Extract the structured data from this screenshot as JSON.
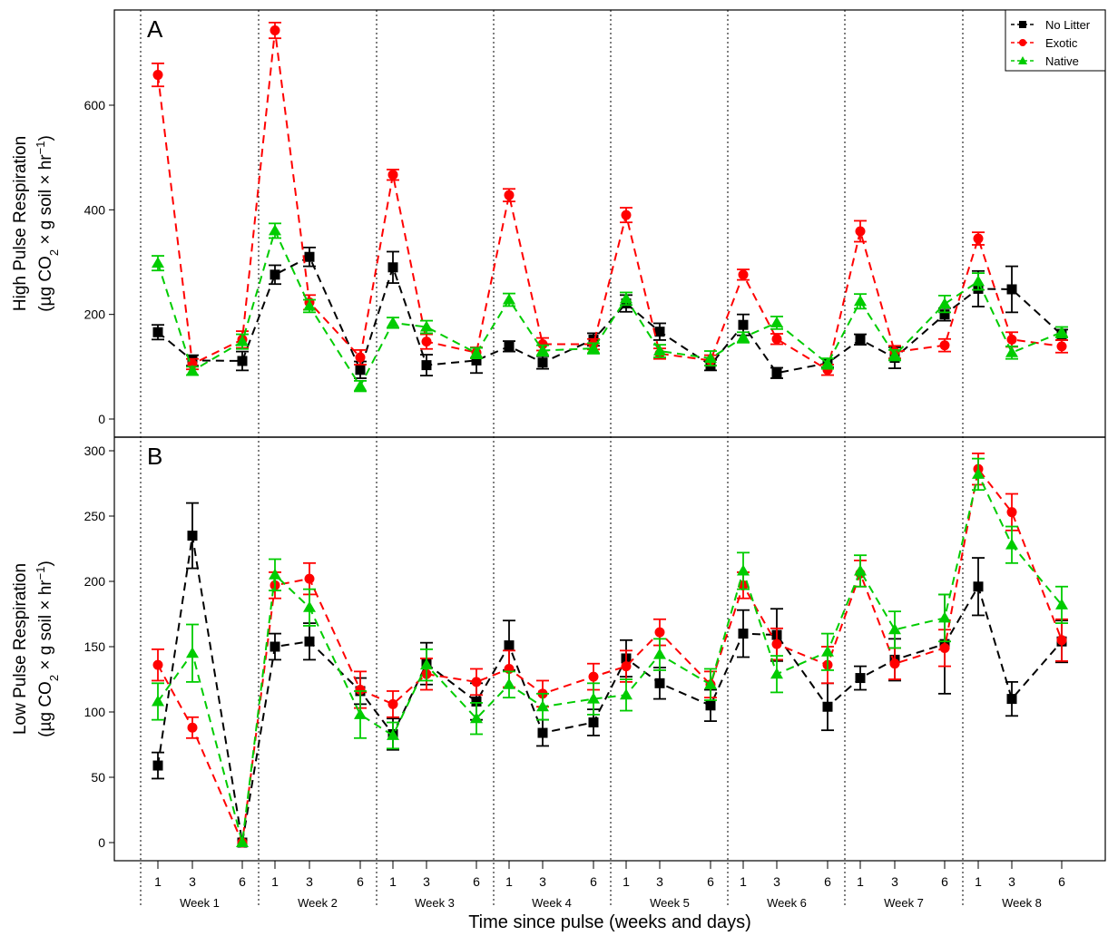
{
  "chart_data": [
    {
      "type": "line",
      "panel_label": "A",
      "ylabel_line1": "High Pulse Respiration",
      "ylabel_line2_parts": [
        "(µg CO",
        "2",
        " × g soil × hr",
        "−1",
        ")"
      ],
      "ylim": [
        0,
        750
      ],
      "yticks": [
        0,
        200,
        400,
        600
      ],
      "series": [
        {
          "name": "No Litter",
          "color": "#000000",
          "marker": "square",
          "values": [
            166,
            112,
            111,
            276,
            310,
            94,
            290,
            103,
            112,
            139,
            108,
            152,
            221,
            167,
            103,
            180,
            88,
            107,
            152,
            117,
            200,
            249,
            248,
            161
          ],
          "errors": [
            14,
            10,
            18,
            18,
            18,
            16,
            30,
            20,
            24,
            10,
            12,
            12,
            16,
            16,
            10,
            20,
            10,
            8,
            10,
            20,
            12,
            34,
            44,
            10
          ]
        },
        {
          "name": "Exotic",
          "color": "#ff0000",
          "marker": "circle",
          "values": [
            658,
            105,
            152,
            743,
            223,
            118,
            467,
            148,
            127,
            428,
            143,
            143,
            390,
            125,
            112,
            276,
            153,
            94,
            359,
            128,
            141,
            345,
            152,
            139
          ],
          "errors": [
            22,
            10,
            16,
            15,
            14,
            14,
            10,
            14,
            10,
            12,
            12,
            10,
            14,
            10,
            10,
            10,
            10,
            10,
            20,
            12,
            12,
            12,
            14,
            12
          ]
        },
        {
          "name": "Native",
          "color": "#00cc00",
          "marker": "triangle",
          "values": [
            298,
            92,
            148,
            360,
            216,
            63,
            184,
            176,
            126,
            228,
            131,
            135,
            230,
            130,
            116,
            156,
            184,
            106,
            225,
            122,
            220,
            263,
            127,
            166
          ],
          "errors": [
            14,
            8,
            14,
            14,
            12,
            10,
            10,
            12,
            10,
            12,
            10,
            10,
            12,
            12,
            14,
            10,
            12,
            10,
            14,
            10,
            16,
            16,
            12,
            10
          ]
        }
      ]
    },
    {
      "type": "line",
      "panel_label": "B",
      "ylabel_line1": "Low Pulse Respiration",
      "ylabel_line2_parts": [
        "(µg CO",
        "2",
        " × g soil × hr",
        "−1",
        ")"
      ],
      "ylim": [
        0,
        300
      ],
      "yticks": [
        0,
        50,
        100,
        150,
        200,
        250,
        300
      ],
      "series": [
        {
          "name": "No Litter",
          "color": "#000000",
          "marker": "square",
          "values": [
            59,
            235,
            0,
            150,
            154,
            116,
            83,
            137,
            108,
            151,
            84,
            92,
            141,
            122,
            105,
            160,
            159,
            104,
            126,
            140,
            152,
            196,
            110,
            154
          ],
          "errors": [
            10,
            25,
            0,
            10,
            14,
            10,
            12,
            16,
            14,
            19,
            10,
            10,
            14,
            12,
            12,
            18,
            20,
            18,
            9,
            16,
            38,
            22,
            13,
            16
          ]
        },
        {
          "name": "Exotic",
          "color": "#ff0000",
          "marker": "circle",
          "values": [
            136,
            88,
            0,
            197,
            202,
            117,
            106,
            129,
            123,
            133,
            114,
            127,
            135,
            161,
            121,
            197,
            152,
            136,
            206,
            137,
            149,
            286,
            253,
            155
          ],
          "errors": [
            12,
            8,
            0,
            10,
            12,
            14,
            10,
            12,
            10,
            14,
            10,
            10,
            12,
            10,
            10,
            10,
            12,
            14,
            10,
            12,
            14,
            12,
            14,
            16
          ]
        },
        {
          "name": "Native",
          "color": "#00cc00",
          "marker": "triangle",
          "values": [
            108,
            145,
            0,
            205,
            180,
            98,
            82,
            136,
            95,
            121,
            104,
            110,
            113,
            144,
            121,
            208,
            129,
            146,
            208,
            163,
            172,
            282,
            228,
            182
          ],
          "errors": [
            14,
            22,
            0,
            12,
            14,
            18,
            10,
            12,
            12,
            10,
            10,
            12,
            12,
            12,
            12,
            14,
            14,
            14,
            12,
            14,
            18,
            12,
            14,
            14
          ]
        }
      ]
    }
  ],
  "x_axis": {
    "day_labels": [
      "1",
      "3",
      "6",
      "1",
      "3",
      "6",
      "1",
      "3",
      "6",
      "1",
      "3",
      "6",
      "1",
      "3",
      "6",
      "1",
      "3",
      "6",
      "1",
      "3",
      "6",
      "1",
      "3",
      "6"
    ],
    "week_labels": [
      "Week 1",
      "Week 2",
      "Week 3",
      "Week 4",
      "Week 5",
      "Week 6",
      "Week 7",
      "Week 8"
    ],
    "xlabel": "Time since pulse (weeks and days)"
  },
  "legend": {
    "placement": "top-right",
    "entries": [
      "No Litter",
      "Exotic",
      "Native"
    ]
  }
}
